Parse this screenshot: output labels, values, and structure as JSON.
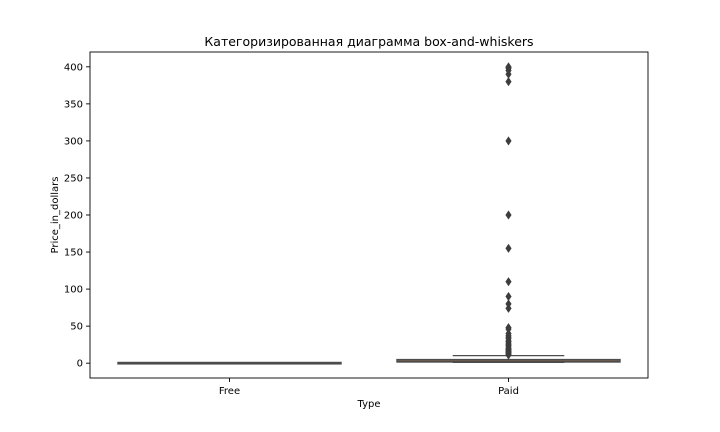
{
  "chart_data": {
    "type": "box",
    "title": "Категоризированная диаграмма box-and-whiskers",
    "xlabel": "Type",
    "ylabel": "Price_in_dollars",
    "categories": [
      "Free",
      "Paid"
    ],
    "ylim": [
      -20,
      420
    ],
    "yticks": [
      0,
      50,
      100,
      150,
      200,
      250,
      300,
      350,
      400
    ],
    "grid": false,
    "legend": "none",
    "boxes": [
      {
        "category": "Free",
        "whisker_low": 0,
        "q1": 0,
        "median": 0,
        "q3": 0,
        "whisker_high": 0,
        "outliers": [],
        "color": "#5b6785"
      },
      {
        "category": "Paid",
        "whisker_low": 0.99,
        "q1": 1.49,
        "median": 2.99,
        "q3": 4.99,
        "whisker_high": 10.24,
        "outliers": [
          11,
          12,
          13,
          14,
          15,
          16,
          17,
          18,
          19,
          20,
          22,
          24,
          25,
          27,
          29,
          30,
          33,
          35,
          37,
          40,
          46,
          48,
          74,
          80,
          90,
          110,
          155,
          200,
          300,
          380,
          390,
          395,
          398,
          399,
          400
        ],
        "color": "#b07a4c"
      }
    ]
  }
}
